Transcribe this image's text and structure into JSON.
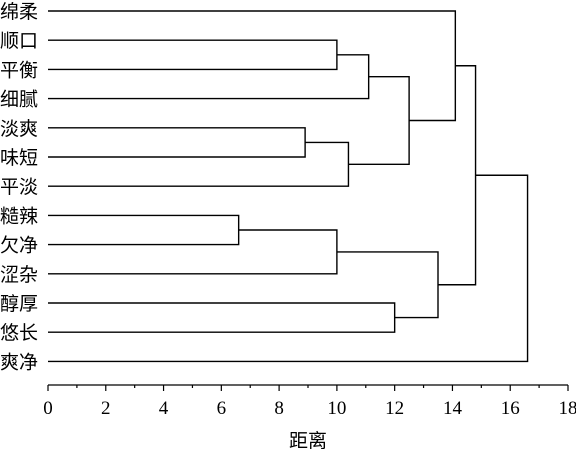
{
  "chart_data": {
    "type": "dendrogram",
    "orientation": "horizontal",
    "xlabel": "距离",
    "xlim": [
      0,
      18
    ],
    "x_ticks": [
      0,
      2,
      4,
      6,
      8,
      10,
      12,
      14,
      16,
      18
    ],
    "leaves": [
      "绵柔",
      "顺口",
      "平衡",
      "细腻",
      "淡爽",
      "味短",
      "平淡",
      "糙辣",
      "欠净",
      "涩杂",
      "醇厚",
      "悠长",
      "爽净"
    ],
    "merges": [
      {
        "id": "m1",
        "a": "淡爽",
        "b": "味短",
        "distance": 8.9,
        "color": "#000000"
      },
      {
        "id": "m2",
        "a": "糙辣",
        "b": "欠净",
        "distance": 6.6,
        "color": "#000000"
      },
      {
        "id": "m3",
        "a": "顺口",
        "b": "平衡",
        "distance": 10.0,
        "color": "#000000"
      },
      {
        "id": "m4",
        "a": "m2",
        "b": "涩杂",
        "distance": 10.0,
        "color": "#000000"
      },
      {
        "id": "m5",
        "a": "m1",
        "b": "平淡",
        "distance": 10.4,
        "color": "#000000"
      },
      {
        "id": "m6",
        "a": "m3",
        "b": "细腻",
        "distance": 11.1,
        "color": "#000000"
      },
      {
        "id": "m7",
        "a": "醇厚",
        "b": "悠长",
        "distance": 12.0,
        "color": "#000000"
      },
      {
        "id": "m8",
        "a": "m6",
        "b": "m5",
        "distance": 12.5,
        "color": "#000000"
      },
      {
        "id": "m9",
        "a": "m4",
        "b": "m7",
        "distance": 13.5,
        "color": "#000000"
      },
      {
        "id": "m10",
        "a": "绵柔",
        "b": "m8",
        "distance": 14.1,
        "color": "#000000"
      },
      {
        "id": "m11",
        "a": "m10",
        "b": "m9",
        "distance": 14.8,
        "color": "#000000"
      },
      {
        "id": "m12",
        "a": "m11",
        "b": "爽净",
        "distance": 16.6,
        "color": "#000000"
      }
    ]
  }
}
